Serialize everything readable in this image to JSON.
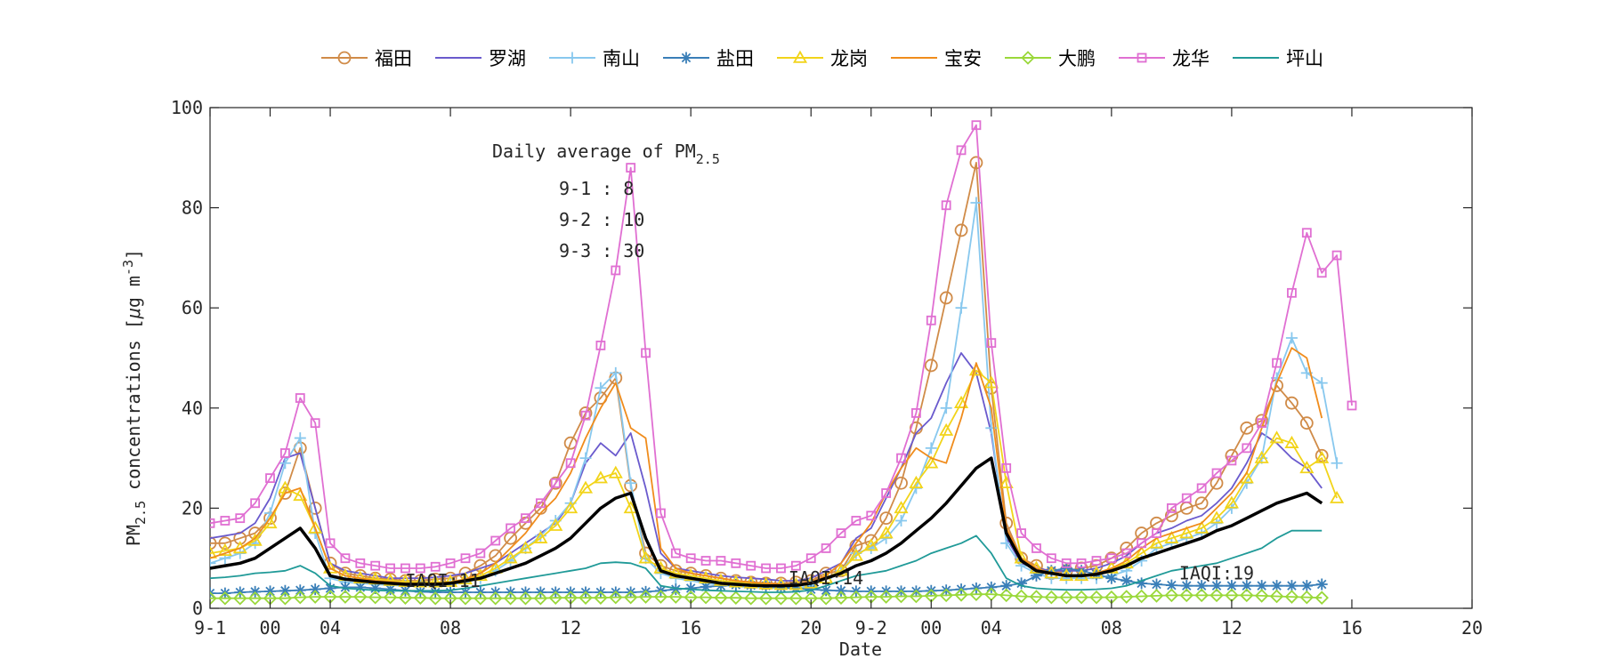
{
  "chart_data": {
    "type": "line",
    "xlabel": "Date",
    "ylabel_main": "PM",
    "ylabel_sub": "2.5",
    "ylabel_rest": " concentrations [",
    "ylabel_mu": "μ",
    "ylabel_unit": "g m",
    "ylabel_exp": "-3",
    "ylabel_close": "]",
    "ylim": [
      0,
      100
    ],
    "yticks": [
      0,
      20,
      40,
      60,
      80,
      100
    ],
    "xlim": [
      0,
      84
    ],
    "xtick_labels": [
      {
        "x": 0,
        "label": "9-1"
      },
      {
        "x": 4,
        "label": "00"
      },
      {
        "x": 8,
        "label": "04"
      },
      {
        "x": 16,
        "label": "08"
      },
      {
        "x": 24,
        "label": "12"
      },
      {
        "x": 32,
        "label": "16"
      },
      {
        "x": 40,
        "label": "20"
      },
      {
        "x": 44,
        "label": "9-2"
      },
      {
        "x": 48,
        "label": "00"
      },
      {
        "x": 52,
        "label": "04"
      },
      {
        "x": 60,
        "label": "08"
      },
      {
        "x": 68,
        "label": "12"
      },
      {
        "x": 76,
        "label": "16"
      },
      {
        "x": 84,
        "label": "20"
      }
    ],
    "annotation": {
      "title": "Daily average of PM",
      "title_sub": "2.5",
      "lines": [
        "9-1  : 8",
        "9-2  : 10",
        "9-3  : 30"
      ]
    },
    "iaqi_labels": [
      {
        "x": 13,
        "y": 5.5,
        "text": "IAQI:11"
      },
      {
        "x": 38.5,
        "y": 6,
        "text": "IAQI:14"
      },
      {
        "x": 64.5,
        "y": 7,
        "text": "IAQI:19"
      }
    ],
    "series": [
      {
        "name": "福田",
        "color": "#d08b48",
        "marker": "circle",
        "values": [
          13,
          13,
          14,
          15,
          18,
          23,
          32,
          20,
          9,
          7,
          6.5,
          6,
          5.8,
          5.5,
          5.5,
          5.8,
          6,
          7,
          8.5,
          10.5,
          14,
          17,
          20,
          25,
          33,
          39,
          42,
          46,
          24.5,
          11,
          8.5,
          7.5,
          7,
          6.5,
          6,
          5.5,
          5.2,
          5,
          5,
          5.2,
          5.5,
          7,
          7.5,
          12.5,
          13.5,
          18,
          25,
          36,
          48.5,
          62,
          75.5,
          89,
          44,
          17,
          10,
          8.5,
          7,
          7.5,
          8,
          8.5,
          10,
          12,
          15,
          17,
          18.5,
          20,
          21,
          25,
          30.5,
          36,
          37.5,
          44.5,
          41,
          37,
          30.5
        ]
      },
      {
        "name": "罗湖",
        "color": "#6a5acd",
        "marker": "none",
        "values": [
          14,
          14.5,
          15,
          17,
          22,
          30,
          31,
          20,
          9,
          7.5,
          7,
          6.5,
          6,
          6,
          6,
          6.2,
          6.5,
          7,
          8,
          9,
          11,
          13,
          15,
          17,
          21,
          29,
          33,
          30.5,
          35,
          24,
          11,
          8,
          7.5,
          7,
          6.5,
          6.2,
          6,
          5.8,
          5.5,
          5.5,
          6,
          7.5,
          9,
          14,
          16,
          22,
          28,
          35,
          38,
          45,
          51,
          47,
          35,
          14,
          9,
          8,
          7.5,
          7.5,
          7.5,
          8,
          9,
          10.5,
          13,
          15,
          16,
          17.5,
          18.5,
          21,
          24,
          29,
          35,
          33,
          30,
          28,
          24
        ]
      },
      {
        "name": "南山",
        "color": "#88c8ee",
        "marker": "plus",
        "values": [
          9,
          10,
          11,
          13,
          19,
          29,
          34,
          15,
          6,
          5.2,
          5,
          4.8,
          4.6,
          4.5,
          4.5,
          4.6,
          4.8,
          5.2,
          6,
          7.5,
          9.5,
          12,
          14.5,
          17.5,
          21,
          30,
          44,
          47,
          25,
          10,
          7,
          6,
          5.5,
          5,
          4.6,
          4.4,
          4.2,
          4.1,
          4,
          4,
          4.5,
          6,
          7.5,
          11,
          12,
          14,
          17.5,
          24,
          32,
          40,
          60,
          81,
          36,
          13,
          8.5,
          7,
          6,
          6,
          6,
          6,
          6.5,
          7.5,
          9.5,
          12,
          13,
          14,
          15,
          17,
          20,
          25,
          30,
          46,
          54,
          47,
          45,
          29
        ]
      },
      {
        "name": "盐田",
        "color": "#3a7fb8",
        "marker": "star",
        "values": [
          3,
          3,
          3.2,
          3.3,
          3.4,
          3.5,
          3.6,
          3.8,
          4,
          4.2,
          4.2,
          4,
          3.8,
          3.5,
          3.3,
          3.2,
          3.2,
          3.2,
          3.2,
          3.2,
          3.2,
          3.2,
          3.2,
          3.2,
          3.2,
          3.2,
          3.2,
          3.2,
          3.2,
          3.3,
          3.5,
          3.8,
          4,
          4.3,
          4.5,
          4.7,
          4.6,
          4.5,
          4.2,
          4,
          3.8,
          3.6,
          3.5,
          3.4,
          3.4,
          3.4,
          3.4,
          3.4,
          3.5,
          3.6,
          3.8,
          4,
          4.2,
          4.5,
          5,
          6.5,
          7.5,
          8,
          7.5,
          6.8,
          6,
          5.5,
          5,
          4.8,
          4.6,
          4.5,
          4.5,
          4.5,
          4.5,
          4.5,
          4.5,
          4.5,
          4.5,
          4.5,
          4.8
        ]
      },
      {
        "name": "龙岗",
        "color": "#f2d41a",
        "marker": "triangle",
        "values": [
          11,
          11.5,
          12,
          13.5,
          17,
          24,
          22.5,
          16,
          8,
          6.5,
          6,
          5.8,
          5.5,
          5.3,
          5.2,
          5.2,
          5.3,
          5.8,
          6.5,
          8,
          10,
          12,
          14,
          16.5,
          20,
          24,
          26,
          27,
          20,
          10,
          8,
          7,
          6.5,
          6,
          5.5,
          5.2,
          5,
          4.8,
          4.7,
          4.7,
          5,
          6,
          7.5,
          10.5,
          12.5,
          15,
          20,
          25,
          29,
          35.5,
          41,
          47.5,
          45,
          25,
          10,
          8,
          7,
          6.5,
          6.5,
          7,
          8,
          9,
          11,
          13,
          14,
          15,
          16,
          18,
          21,
          26,
          30,
          34,
          33,
          28,
          30,
          22
        ]
      },
      {
        "name": "宝安",
        "color": "#f08c1c",
        "marker": "none",
        "values": [
          10,
          11,
          12,
          14,
          18,
          23,
          24,
          16,
          8,
          6.5,
          6,
          5.5,
          5.3,
          5,
          5,
          5,
          5.2,
          5.8,
          7,
          9,
          12,
          15,
          19,
          22,
          27,
          34,
          40,
          45,
          36,
          34,
          12,
          8,
          7,
          6.5,
          6,
          5.5,
          5.2,
          5,
          4.8,
          4.8,
          5.2,
          6.5,
          9,
          13,
          17,
          23,
          28,
          32,
          30,
          29,
          38,
          49,
          40,
          16,
          10,
          8,
          7,
          6.5,
          6.5,
          7,
          8,
          9.5,
          12,
          14,
          15,
          16,
          17,
          20,
          23,
          27,
          36,
          45,
          52,
          50,
          38
        ]
      },
      {
        "name": "大鹏",
        "color": "#9ad83a",
        "marker": "diamond",
        "values": [
          2,
          2,
          2,
          2,
          2,
          2,
          2.2,
          2.3,
          2.3,
          2.3,
          2.3,
          2.2,
          2.2,
          2.1,
          2.1,
          2,
          2,
          2,
          2,
          2,
          2,
          2,
          2,
          2.1,
          2.1,
          2.1,
          2.1,
          2.2,
          2.2,
          2.3,
          2.3,
          2.3,
          2.2,
          2.2,
          2.1,
          2.1,
          2,
          2,
          2,
          2,
          2,
          2,
          2.1,
          2.2,
          2.3,
          2.3,
          2.4,
          2.4,
          2.5,
          2.6,
          2.7,
          2.8,
          2.8,
          2.6,
          2.4,
          2.3,
          2.2,
          2.2,
          2.2,
          2.2,
          2.2,
          2.3,
          2.4,
          2.5,
          2.6,
          2.6,
          2.6,
          2.6,
          2.6,
          2.6,
          2.5,
          2.4,
          2.3,
          2.2,
          2.1
        ]
      },
      {
        "name": "龙华",
        "color": "#e06fd2",
        "marker": "square",
        "values": [
          17,
          17.5,
          18,
          21,
          26,
          31,
          42,
          37,
          13,
          10,
          9,
          8.5,
          8,
          8,
          8,
          8.3,
          9,
          10,
          11,
          13.5,
          16,
          18,
          21,
          25,
          29,
          38.5,
          52.5,
          67.5,
          88,
          51,
          19,
          11,
          10,
          9.5,
          9.5,
          9,
          8.5,
          8,
          8,
          8.5,
          10,
          12,
          15,
          17.5,
          18.5,
          23,
          30,
          39,
          57.5,
          80.5,
          91.5,
          96.5,
          53,
          28,
          15,
          12,
          10,
          9,
          9,
          9.5,
          10,
          11,
          13,
          15,
          20,
          22,
          24,
          27,
          29.5,
          32,
          37,
          49,
          63,
          75,
          67,
          70.5,
          40.5
        ]
      },
      {
        "name": "坪山",
        "color": "#209a98",
        "marker": "none",
        "values": [
          6,
          6.2,
          6.5,
          7,
          7.2,
          7.5,
          8.5,
          7,
          4.5,
          4,
          3.8,
          3.6,
          3.5,
          3.5,
          3.5,
          3.5,
          3.6,
          4,
          4.5,
          5,
          5.5,
          6,
          6.5,
          7,
          7.5,
          8,
          9,
          9.2,
          9,
          8,
          4.5,
          4,
          3.8,
          3.6,
          3.5,
          3.4,
          3.3,
          3.2,
          3.2,
          3.3,
          3.6,
          4.5,
          5.5,
          6.5,
          7,
          7.5,
          8.5,
          9.5,
          11,
          12,
          13,
          14.5,
          11,
          6,
          4.5,
          4,
          3.8,
          3.7,
          3.7,
          3.8,
          4,
          4.5,
          5.5,
          6.5,
          7.5,
          8,
          8.5,
          9,
          10,
          11,
          12,
          14,
          15.5,
          15.5,
          15.5
        ]
      },
      {
        "name": "Average",
        "color": "#000000",
        "marker": "none",
        "legend": false,
        "width": 3.5,
        "values": [
          8,
          8.5,
          9,
          10,
          12,
          14,
          16,
          12,
          6.5,
          5.8,
          5.5,
          5.2,
          5,
          4.8,
          4.8,
          4.8,
          5,
          5.5,
          6,
          7,
          8,
          9,
          10.5,
          12,
          14,
          17,
          20,
          22,
          23,
          14,
          7.5,
          6.5,
          6,
          5.5,
          5,
          4.8,
          4.6,
          4.5,
          4.5,
          4.6,
          5,
          6,
          7,
          8.5,
          9.5,
          11,
          13,
          15.5,
          18,
          21,
          24.5,
          28,
          30,
          15,
          9.5,
          7.5,
          7,
          6.5,
          6.5,
          6.8,
          7.5,
          8.5,
          10,
          11,
          12,
          13,
          14,
          15.5,
          16.5,
          18,
          19.5,
          21,
          22,
          23,
          21
        ]
      }
    ]
  }
}
